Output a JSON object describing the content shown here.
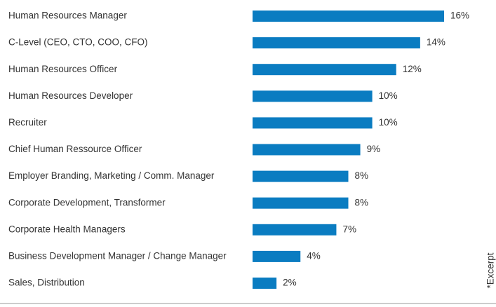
{
  "chart_data": {
    "type": "hbar",
    "categories": [
      "Human Resources Manager",
      "C-Level (CEO, CTO, COO, CFO)",
      "Human Resources Officer",
      "Human Resources Developer",
      "Recruiter",
      "Chief Human Ressource Officer",
      "Employer Branding, Marketing  / Comm. Manager",
      "Corporate Development, Transformer",
      "Corporate Health Managers",
      "Business Development Manager / Change Manager",
      "Sales, Distribution"
    ],
    "values": [
      16,
      14,
      12,
      10,
      10,
      9,
      8,
      8,
      7,
      4,
      2
    ],
    "value_labels": [
      "16%",
      "14%",
      "12%",
      "10%",
      "10%",
      "9%",
      "8%",
      "8%",
      "7%",
      "4%",
      "2%"
    ],
    "color": "#0a7cc1",
    "note": "*Excerpt"
  }
}
